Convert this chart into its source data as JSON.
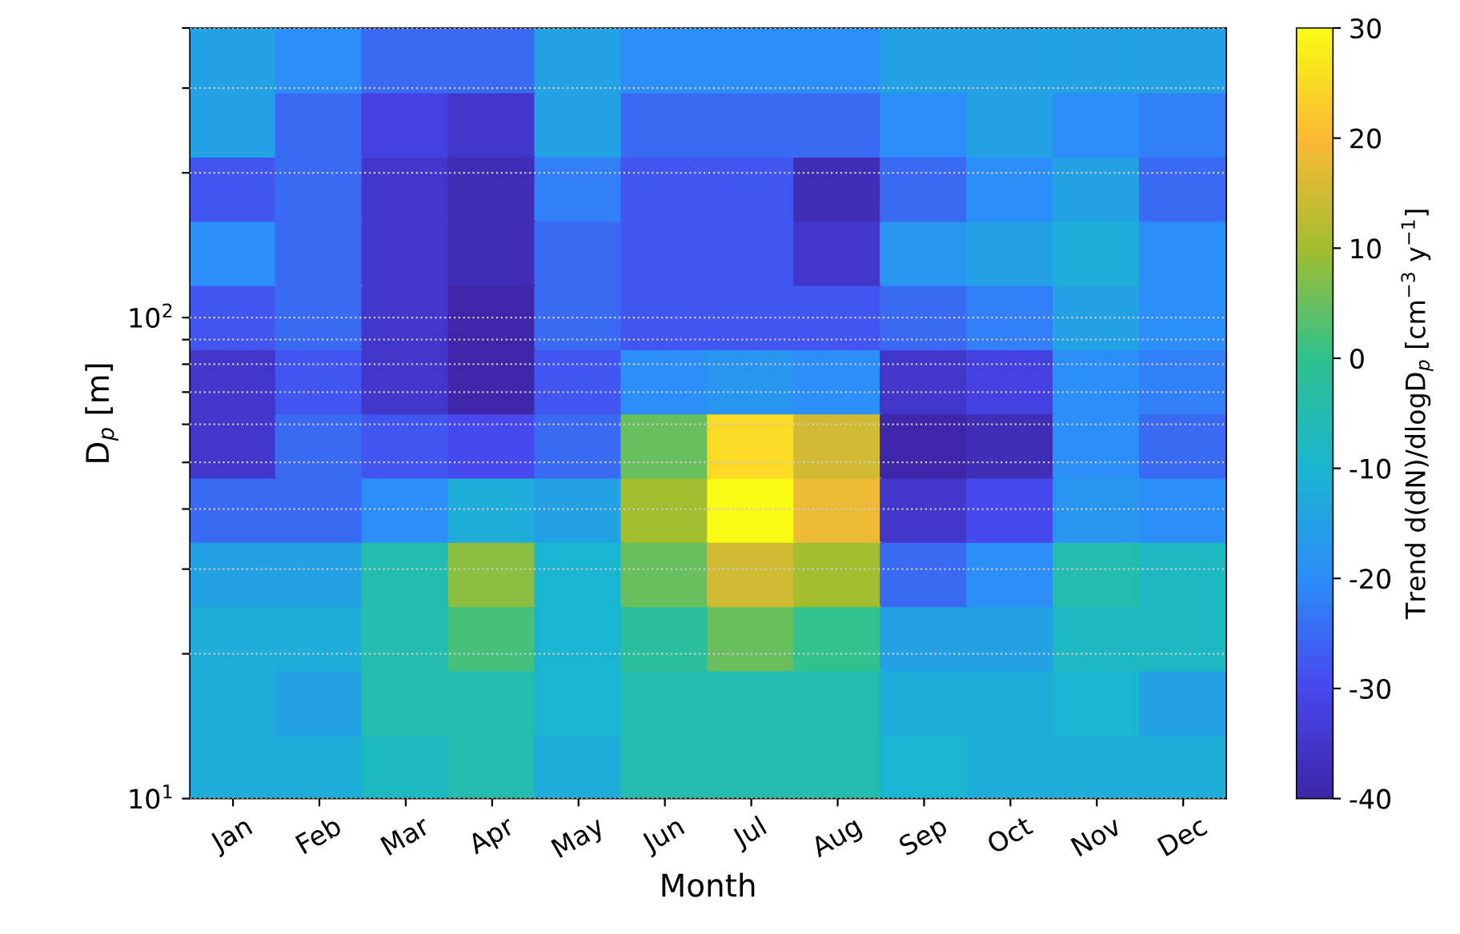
{
  "chart_data": {
    "type": "heatmap",
    "xlabel": "Month",
    "ylabel": "D$_{p}$ [m]",
    "clabel": "Trend d(dN)/dlogD$_{p}$ [cm$^{−3}$ y$^{−1}$]",
    "categories": [
      "Jan",
      "Feb",
      "Mar",
      "Apr",
      "May",
      "Jun",
      "Jul",
      "Aug",
      "Sep",
      "Oct",
      "Nov",
      "Dec"
    ],
    "cells": [
      [
        -15,
        -20,
        -25,
        -25,
        -15,
        -20,
        -20,
        -20,
        -15,
        -15,
        -15,
        -15
      ],
      [
        -15,
        -25,
        -32,
        -35,
        -15,
        -25,
        -25,
        -25,
        -20,
        -15,
        -20,
        -22
      ],
      [
        -28,
        -25,
        -35,
        -38,
        -22,
        -28,
        -28,
        -38,
        -25,
        -20,
        -15,
        -25
      ],
      [
        -20,
        -25,
        -35,
        -38,
        -25,
        -28,
        -28,
        -35,
        -18,
        -15,
        -12,
        -20
      ],
      [
        -28,
        -25,
        -35,
        -40,
        -25,
        -28,
        -28,
        -28,
        -25,
        -22,
        -15,
        -20
      ],
      [
        -35,
        -28,
        -35,
        -40,
        -28,
        -20,
        -18,
        -20,
        -35,
        -32,
        -20,
        -22
      ],
      [
        -35,
        -25,
        -28,
        -30,
        -25,
        5,
        25,
        15,
        -40,
        -38,
        -20,
        -25
      ],
      [
        -25,
        -25,
        -20,
        -12,
        -15,
        10,
        30,
        18,
        -35,
        -30,
        -18,
        -20
      ],
      [
        -15,
        -15,
        -5,
        8,
        -10,
        5,
        15,
        10,
        -25,
        -20,
        -5,
        -8
      ],
      [
        -12,
        -12,
        -5,
        2,
        -10,
        -2,
        5,
        0,
        -15,
        -15,
        -8,
        -8
      ],
      [
        -12,
        -15,
        -5,
        -5,
        -10,
        -5,
        -5,
        -5,
        -12,
        -12,
        -10,
        -15
      ],
      [
        -12,
        -12,
        -8,
        -5,
        -12,
        -5,
        -5,
        -5,
        -10,
        -12,
        -12,
        -12
      ]
    ],
    "log": "y",
    "ylim": [
      10,
      400
    ],
    "yticks": [
      {
        "value": 10,
        "label": "10$^{1}$"
      },
      {
        "value": 20,
        "label": null
      },
      {
        "value": 30,
        "label": null
      },
      {
        "value": 40,
        "label": null
      },
      {
        "value": 50,
        "label": null
      },
      {
        "value": 60,
        "label": null
      },
      {
        "value": 70,
        "label": null
      },
      {
        "value": 80,
        "label": null
      },
      {
        "value": 90,
        "label": null
      },
      {
        "value": 100,
        "label": "10$^{2}$"
      },
      {
        "value": 200,
        "label": null
      },
      {
        "value": 300,
        "label": null
      },
      {
        "value": 400,
        "label": null
      }
    ],
    "clim": [
      -40,
      30
    ],
    "cticks": [
      -40,
      -30,
      -20,
      -10,
      0,
      10,
      20,
      30
    ],
    "grid": "y"
  }
}
